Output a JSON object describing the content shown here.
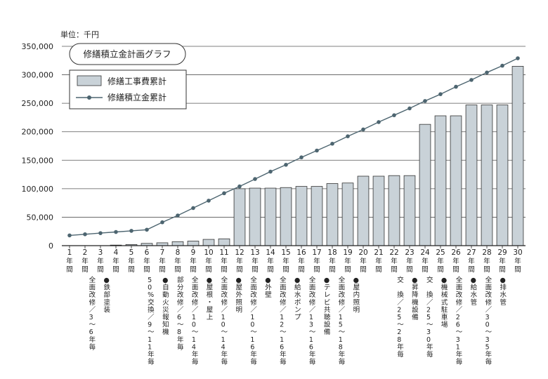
{
  "chart_data": {
    "type": "bar",
    "title": "修繕積立金計画グラフ",
    "unit_label": "単位：千円",
    "ylim": [
      0,
      350000
    ],
    "yticks": [
      0,
      50000,
      100000,
      150000,
      200000,
      250000,
      300000,
      350000
    ],
    "ytick_labels": [
      "0",
      "50,000",
      "100,000",
      "150,000",
      "200,000",
      "250,000",
      "300,000",
      "350,000"
    ],
    "x_sub_labels": [
      "年",
      "間"
    ],
    "categories": [
      "1",
      "2",
      "3",
      "4",
      "5",
      "6",
      "7",
      "8",
      "9",
      "10",
      "11",
      "12",
      "13",
      "14",
      "15",
      "16",
      "17",
      "18",
      "19",
      "20",
      "21",
      "22",
      "23",
      "24",
      "25",
      "26",
      "27",
      "28",
      "29",
      "30"
    ],
    "series": [
      {
        "name": "修繕工事費累計",
        "type": "bar",
        "color": "#c9d2d8",
        "values": [
          0,
          0,
          0,
          1000,
          2000,
          4000,
          5000,
          7000,
          8000,
          11000,
          12000,
          100000,
          101000,
          101000,
          102000,
          104000,
          104000,
          109000,
          110000,
          122000,
          122000,
          123000,
          123000,
          213000,
          228000,
          228000,
          247000,
          247000,
          247000,
          315000
        ]
      },
      {
        "name": "修繕積立金累計",
        "type": "line",
        "color": "#4d6570",
        "values": [
          18000,
          20000,
          22000,
          24000,
          26000,
          28000,
          41000,
          53000,
          66000,
          79000,
          92000,
          104000,
          117000,
          130000,
          142000,
          155000,
          167000,
          179000,
          192000,
          204000,
          217000,
          229000,
          241000,
          254000,
          266000,
          279000,
          291000,
          304000,
          316000,
          329000
        ]
      }
    ],
    "annotations": [
      {
        "index": 3,
        "text": "全面改修／3〜6年毎"
      },
      {
        "index": 4,
        "text": "●鉄部塗装"
      },
      {
        "index": 7,
        "text": "50%交換／9〜11年毎"
      },
      {
        "index": 8,
        "text": "●自動火災報知機"
      },
      {
        "index": 9,
        "text": "部分改修／6〜8年毎"
      },
      {
        "index": 10,
        "text": "全面改修／10〜14年毎"
      },
      {
        "index": 11,
        "text": "●屋根・屋上"
      },
      {
        "index": 12,
        "text": "全面改修／10〜14年毎"
      },
      {
        "index": 13,
        "text": "●屋外照明"
      },
      {
        "index": 14,
        "text": "全面改修／10〜16年毎"
      },
      {
        "index": 15,
        "text": "●外壁"
      },
      {
        "index": 16,
        "text": "全面改修／12〜16年毎"
      },
      {
        "index": 17,
        "text": "●給水ポンプ"
      },
      {
        "index": 18,
        "text": "全面改修／13〜16年毎"
      },
      {
        "index": 19,
        "text": "●テレビ共聴設備"
      },
      {
        "index": 20,
        "text": "全面改修／15〜18年毎"
      },
      {
        "index": 21,
        "text": "●屋内照明"
      },
      {
        "index": 24,
        "text": "交　換／25〜28年毎"
      },
      {
        "index": 25,
        "text": "●昇降機設備"
      },
      {
        "index": 26,
        "text": "交　換／25〜30年毎"
      },
      {
        "index": 27,
        "text": "●機械式駐車場"
      },
      {
        "index": 28,
        "text": "全面改修／26〜31年毎"
      },
      {
        "index": 29,
        "text": "●給水管"
      },
      {
        "index": 30,
        "text": "全面改修／30〜35年毎"
      },
      {
        "index": 31,
        "text": "●排水管"
      }
    ],
    "grid": true,
    "legend_position": "top-left"
  }
}
